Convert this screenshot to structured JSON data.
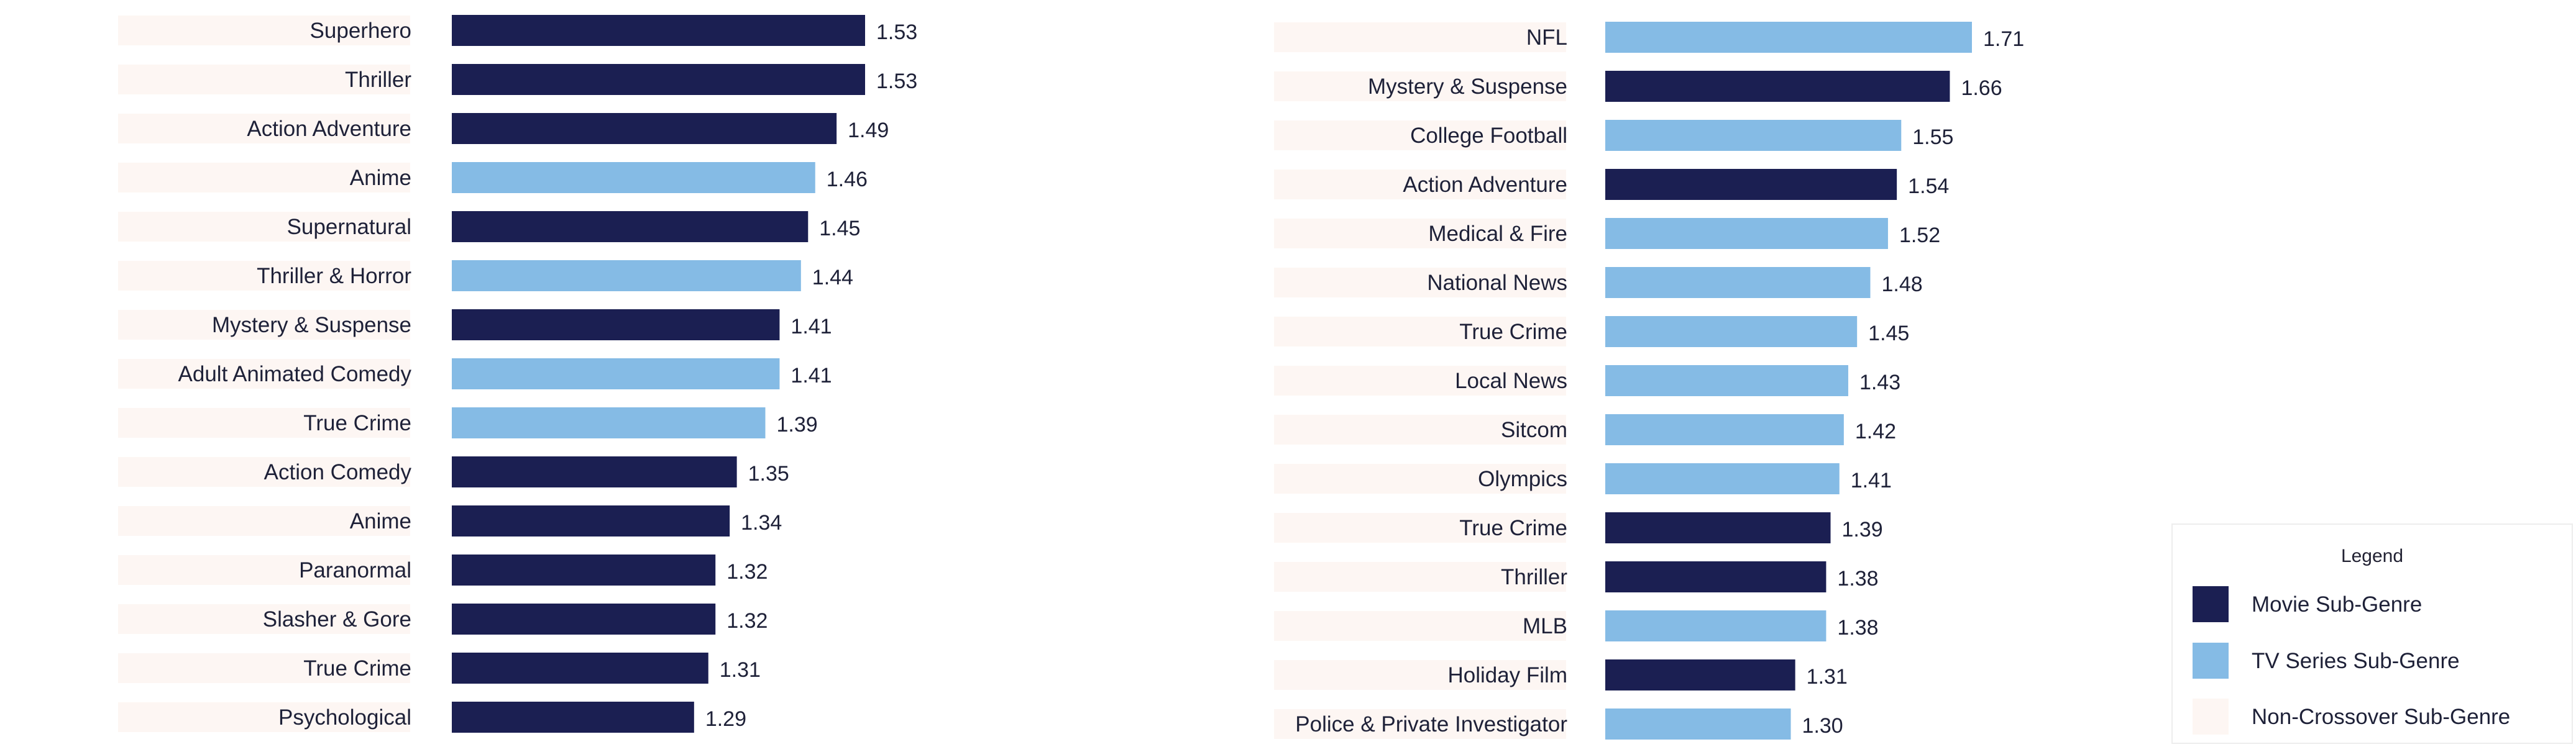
{
  "colors": {
    "movie": "#1b1f52",
    "tv": "#85bbe5",
    "non_crossover": "#fdf6f3",
    "text": "#1e2138"
  },
  "legend": {
    "title": "Legend",
    "items": [
      {
        "label": "Movie Sub-Genre",
        "color": "#1b1f52"
      },
      {
        "label": "TV Series Sub-Genre",
        "color": "#85bbe5"
      },
      {
        "label": "Non-Crossover Sub-Genre",
        "color": "#fdf6f3"
      }
    ]
  },
  "chart_data": [
    {
      "type": "bar",
      "orientation": "horizontal",
      "categories": [
        "Superhero",
        "Thriller",
        "Action Adventure",
        "Anime",
        "Supernatural",
        "Thriller & Horror",
        "Mystery & Suspense",
        "Adult Animated Comedy",
        "True Crime",
        "Action Comedy",
        "Anime",
        "Paranormal",
        "Slasher & Gore",
        "True Crime",
        "Psychological"
      ],
      "values": [
        1.53,
        1.53,
        1.49,
        1.46,
        1.45,
        1.44,
        1.41,
        1.41,
        1.39,
        1.35,
        1.34,
        1.32,
        1.32,
        1.31,
        1.29
      ],
      "value_labels": [
        "1.53",
        "1.53",
        "1.49",
        "1.46",
        "1.45",
        "1.44",
        "1.41",
        "1.41",
        "1.39",
        "1.35",
        "1.34",
        "1.32",
        "1.32",
        "1.31",
        "1.29"
      ],
      "bar_types": [
        "movie",
        "movie",
        "movie",
        "tv",
        "movie",
        "tv",
        "movie",
        "tv",
        "tv",
        "movie",
        "movie",
        "movie",
        "movie",
        "movie",
        "movie"
      ],
      "xlim": [
        0.95,
        1.53
      ]
    },
    {
      "type": "bar",
      "orientation": "horizontal",
      "categories": [
        "NFL",
        "Mystery & Suspense",
        "College Football",
        "Action Adventure",
        "Medical & Fire",
        "National News",
        "True Crime",
        "Local News",
        "Sitcom",
        "Olympics",
        "True Crime",
        "Thriller",
        "MLB",
        "Holiday Film",
        "Police & Private Investigator"
      ],
      "values": [
        1.71,
        1.66,
        1.55,
        1.54,
        1.52,
        1.48,
        1.45,
        1.43,
        1.42,
        1.41,
        1.39,
        1.38,
        1.38,
        1.31,
        1.3
      ],
      "value_labels": [
        "1.71",
        "1.66",
        "1.55",
        "1.54",
        "1.52",
        "1.48",
        "1.45",
        "1.43",
        "1.42",
        "1.41",
        "1.39",
        "1.38",
        "1.38",
        "1.31",
        "1.30"
      ],
      "bar_types": [
        "tv",
        "movie",
        "tv",
        "movie",
        "tv",
        "tv",
        "tv",
        "tv",
        "tv",
        "tv",
        "movie",
        "movie",
        "tv",
        "movie",
        "tv"
      ],
      "xlim": [
        0.88,
        1.71
      ]
    }
  ]
}
